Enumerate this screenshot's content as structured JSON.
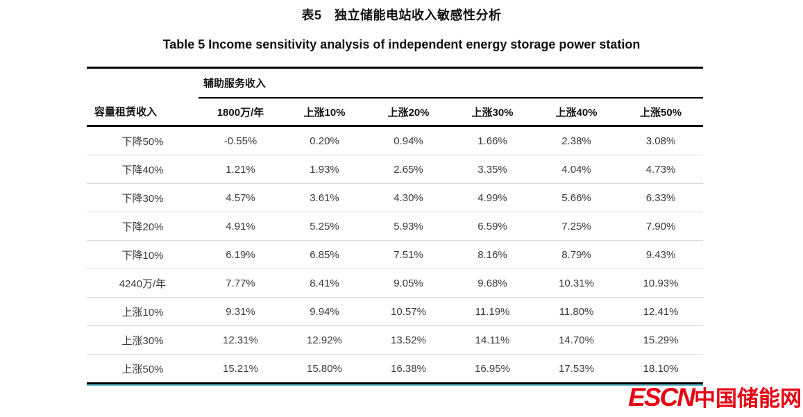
{
  "page": {
    "title_zh": "表5　独立储能电站收入敏感性分析",
    "title_en": "Table 5  Income sensitivity analysis of independent energy storage power station"
  },
  "table": {
    "group_header": "辅助服务收入",
    "col1_header": "容量租赁收入",
    "sub_headers": [
      "1800万/年",
      "上涨10%",
      "上涨20%",
      "上涨30%",
      "上涨40%",
      "上涨50%"
    ],
    "rows": [
      {
        "label": "下降50%",
        "values": [
          "-0.55%",
          "0.20%",
          "0.94%",
          "1.66%",
          "2.38%",
          "3.08%"
        ]
      },
      {
        "label": "下降40%",
        "values": [
          "1.21%",
          "1.93%",
          "2.65%",
          "3.35%",
          "4.04%",
          "4.73%"
        ]
      },
      {
        "label": "下降30%",
        "values": [
          "4.57%",
          "3.61%",
          "4.30%",
          "4.99%",
          "5.66%",
          "6.33%"
        ]
      },
      {
        "label": "下降20%",
        "values": [
          "4.91%",
          "5.25%",
          "5.93%",
          "6.59%",
          "7.25%",
          "7.90%"
        ]
      },
      {
        "label": "下降10%",
        "values": [
          "6.19%",
          "6.85%",
          "7.51%",
          "8.16%",
          "8.79%",
          "9.43%"
        ]
      },
      {
        "label": "4240万/年",
        "values": [
          "7.77%",
          "8.41%",
          "9.05%",
          "9.68%",
          "10.31%",
          "10.93%"
        ]
      },
      {
        "label": "上涨10%",
        "values": [
          "9.31%",
          "9.94%",
          "10.57%",
          "11.19%",
          "11.80%",
          "12.41%"
        ]
      },
      {
        "label": "上涨30%",
        "values": [
          "12.31%",
          "12.92%",
          "13.52%",
          "14.11%",
          "14.70%",
          "15.29%"
        ]
      },
      {
        "label": "上涨50%",
        "values": [
          "15.21%",
          "15.80%",
          "16.38%",
          "16.95%",
          "17.53%",
          "18.10%"
        ]
      }
    ]
  },
  "watermark": {
    "escn": "ESCN",
    "site_name": "中国储能网",
    "color": "#e60012"
  },
  "chart_data": {
    "type": "table",
    "title": "表5　独立储能电站收入敏感性分析 / Table 5 Income sensitivity analysis of independent energy storage power station",
    "row_header": "容量租赁收入",
    "column_group_header": "辅助服务收入",
    "columns": [
      "1800万/年",
      "上涨10%",
      "上涨20%",
      "上涨30%",
      "上涨40%",
      "上涨50%"
    ],
    "row_labels": [
      "下降50%",
      "下降40%",
      "下降30%",
      "下降20%",
      "下降10%",
      "4240万/年",
      "上涨10%",
      "上涨30%",
      "上涨50%"
    ],
    "values_percent": [
      [
        -0.55,
        0.2,
        0.94,
        1.66,
        2.38,
        3.08
      ],
      [
        1.21,
        1.93,
        2.65,
        3.35,
        4.04,
        4.73
      ],
      [
        4.57,
        3.61,
        4.3,
        4.99,
        5.66,
        6.33
      ],
      [
        4.91,
        5.25,
        5.93,
        6.59,
        7.25,
        7.9
      ],
      [
        6.19,
        6.85,
        7.51,
        8.16,
        8.79,
        9.43
      ],
      [
        7.77,
        8.41,
        9.05,
        9.68,
        10.31,
        10.93
      ],
      [
        9.31,
        9.94,
        10.57,
        11.19,
        11.8,
        12.41
      ],
      [
        12.31,
        12.92,
        13.52,
        14.11,
        14.7,
        15.29
      ],
      [
        15.21,
        15.8,
        16.38,
        16.95,
        17.53,
        18.1
      ]
    ]
  }
}
